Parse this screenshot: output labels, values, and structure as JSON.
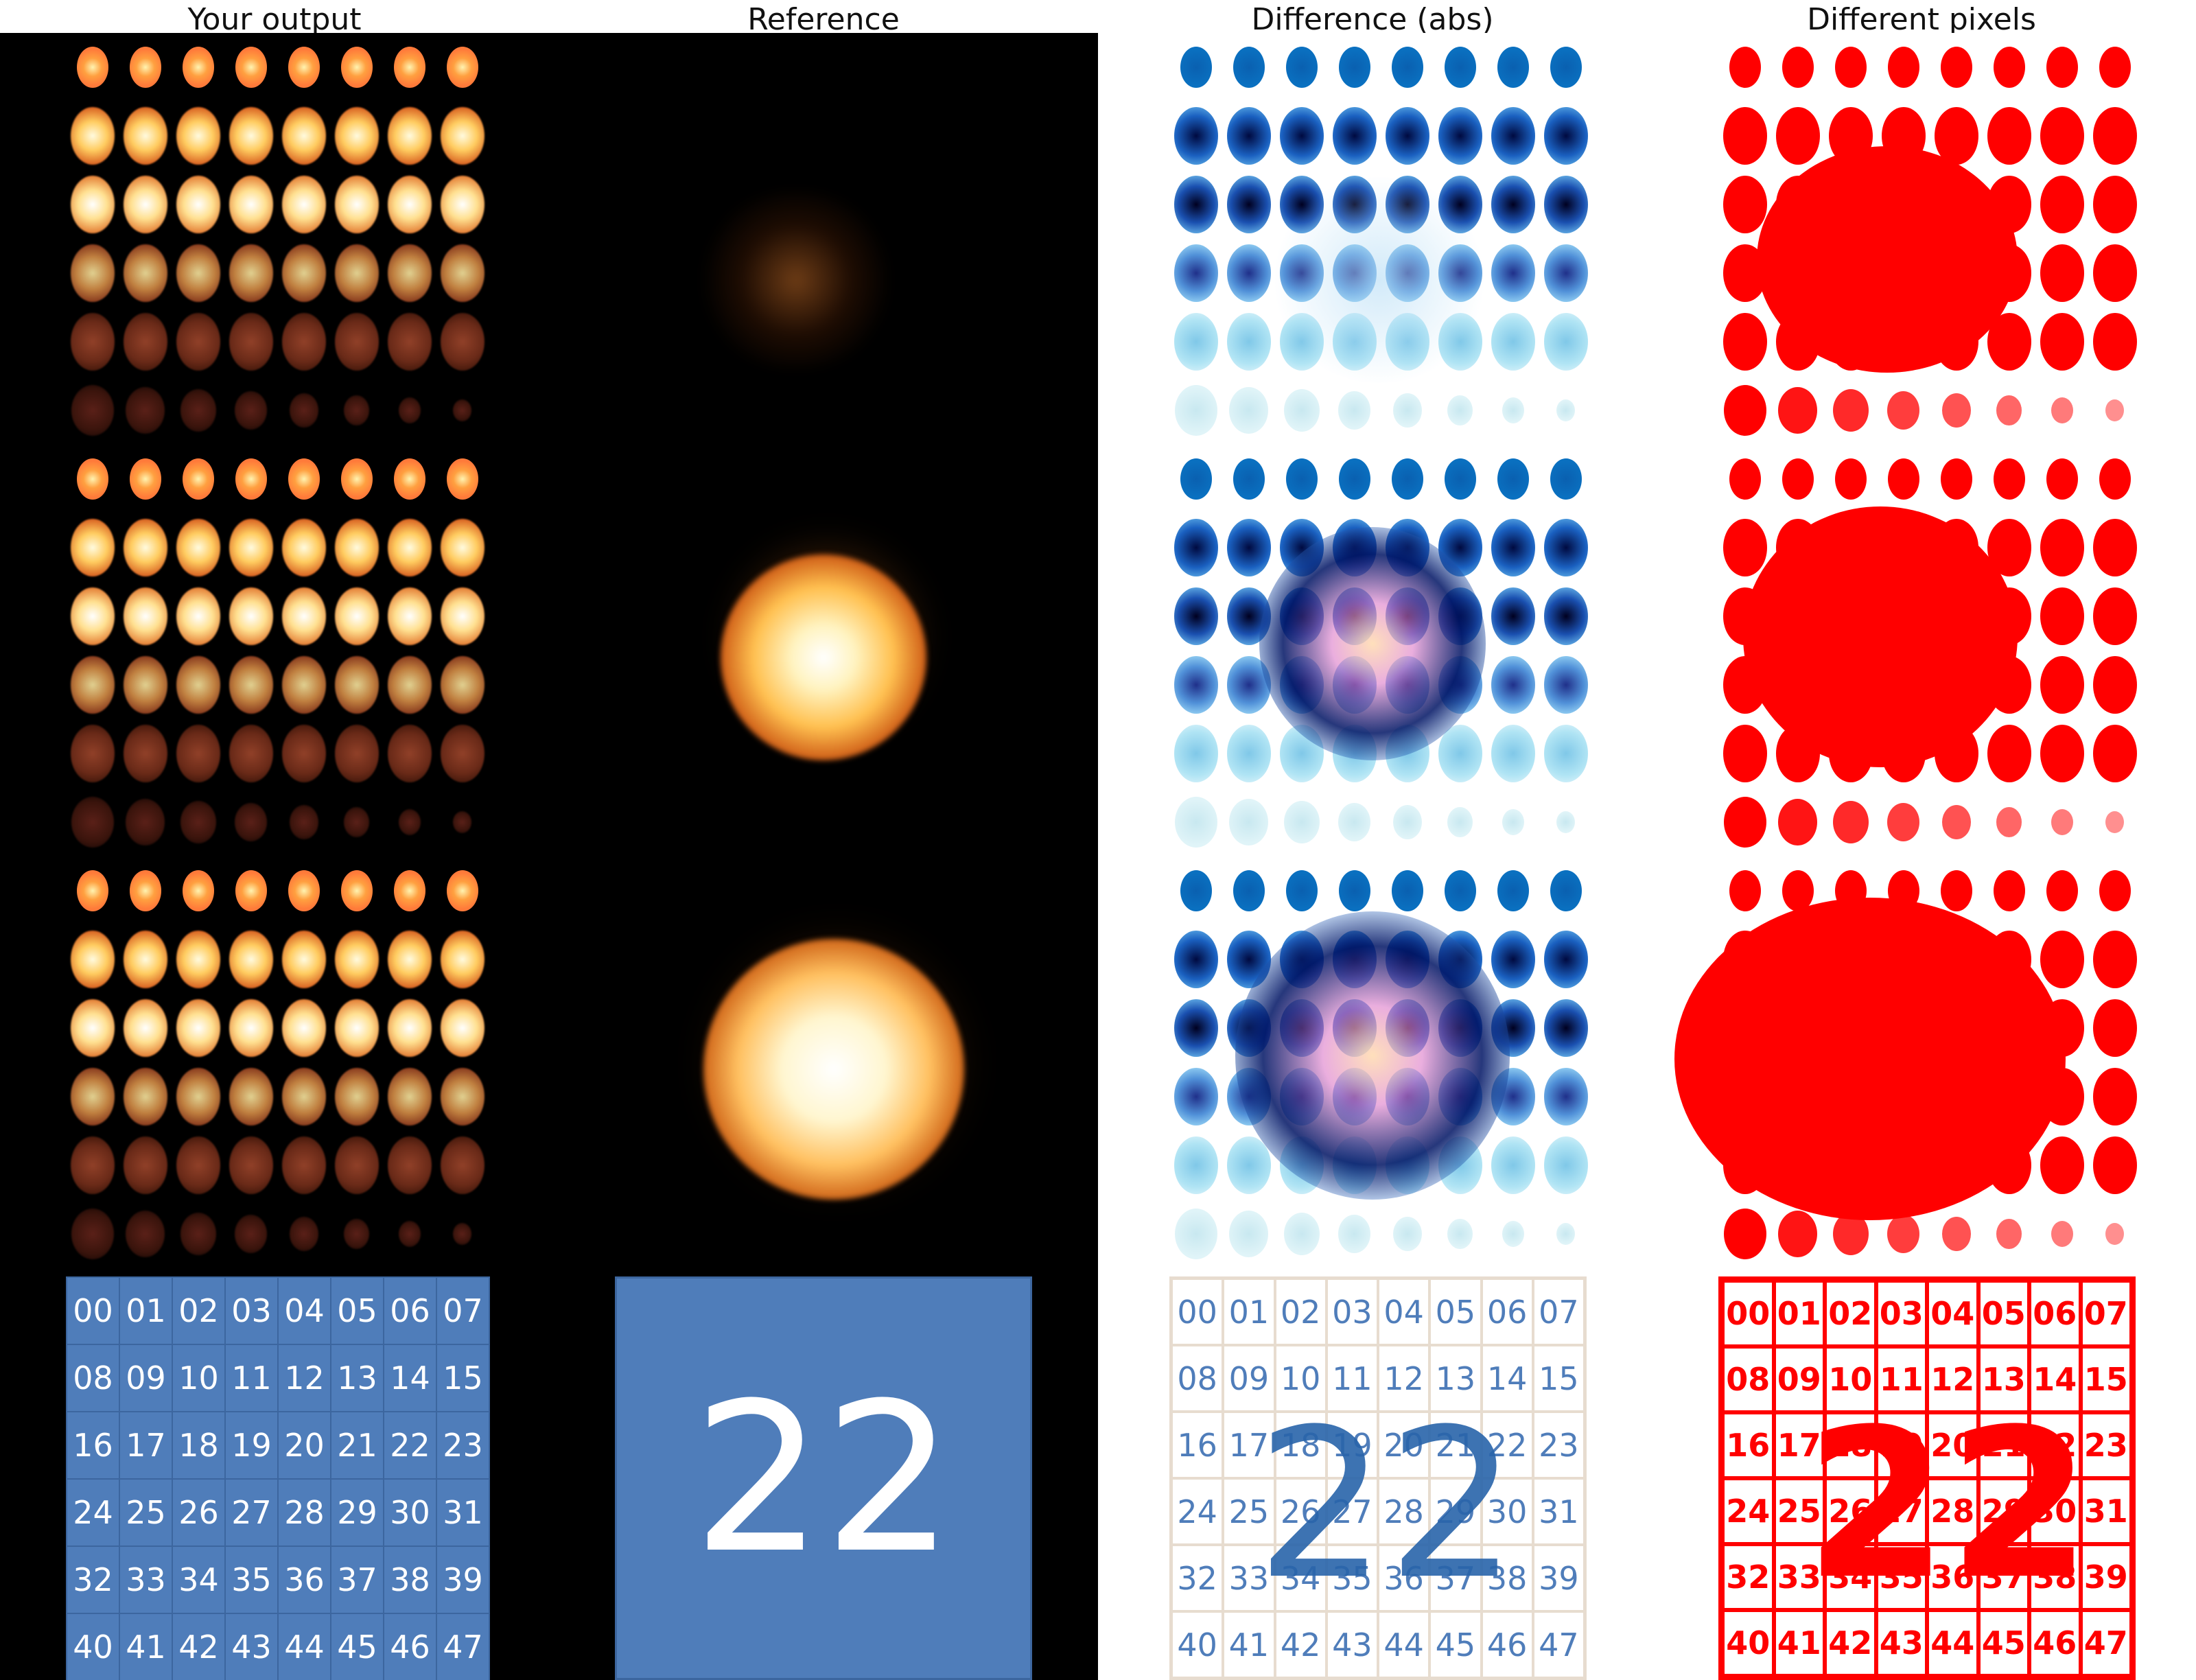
{
  "titles": {
    "output": "Your output",
    "reference": "Reference",
    "diff": "Difference (abs)",
    "pixels": "Different pixels"
  },
  "tiles": [
    "00",
    "01",
    "02",
    "03",
    "04",
    "05",
    "06",
    "07",
    "08",
    "09",
    "10",
    "11",
    "12",
    "13",
    "14",
    "15",
    "16",
    "17",
    "18",
    "19",
    "20",
    "21",
    "22",
    "23",
    "24",
    "25",
    "26",
    "27",
    "28",
    "29",
    "30",
    "31",
    "32",
    "33",
    "34",
    "35",
    "36",
    "37",
    "38",
    "39",
    "40",
    "41",
    "42",
    "43",
    "44",
    "45",
    "46",
    "47"
  ],
  "reference_tile": "22",
  "colors": {
    "tile_blue": "#4f7dba",
    "diff_blue": "#0a70c0",
    "pixel_red": "#ff0000",
    "fire_core": "#fff6d0",
    "fire_mid": "#ffb040",
    "fire_edge": "#c04010"
  }
}
